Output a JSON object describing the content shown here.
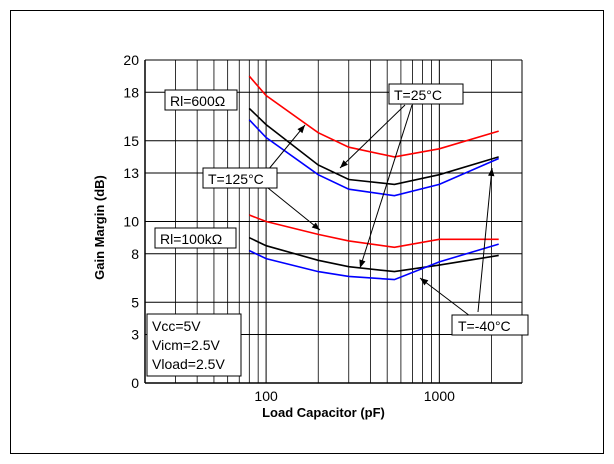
{
  "chart_data": {
    "type": "line",
    "xlabel": "Load Capacitor (pF)",
    "ylabel": "Gain Margin (dB)",
    "x_scale": "log",
    "xlim": [
      20,
      3000
    ],
    "ylim": [
      0,
      20
    ],
    "x_tick_labels": [
      "100",
      "1000"
    ],
    "y_tick_labels": [
      "0",
      "3",
      "5",
      "8",
      "10",
      "13",
      "15",
      "18",
      "20"
    ],
    "grid": true,
    "series": [
      {
        "group": "Rl=600Ω",
        "temp": "T=25°C",
        "color": "#000000",
        "x": [
          80,
          100,
          200,
          300,
          550,
          1000,
          2200
        ],
        "y": [
          17.0,
          16.0,
          13.5,
          12.6,
          12.3,
          12.9,
          14.0
        ]
      },
      {
        "group": "Rl=600Ω",
        "temp": "T=125°C",
        "color": "#ff0000",
        "x": [
          80,
          100,
          200,
          300,
          550,
          1000,
          2200
        ],
        "y": [
          19.0,
          17.8,
          15.5,
          14.6,
          14.0,
          14.5,
          15.6
        ]
      },
      {
        "group": "Rl=600Ω",
        "temp": "T=-40°C",
        "color": "#0000ff",
        "x": [
          80,
          100,
          200,
          300,
          550,
          1000,
          2200
        ],
        "y": [
          16.3,
          15.2,
          12.9,
          12.0,
          11.6,
          12.3,
          13.9
        ]
      },
      {
        "group": "Rl=100kΩ",
        "temp": "T=25°C",
        "color": "#000000",
        "x": [
          80,
          100,
          200,
          300,
          550,
          1000,
          2200
        ],
        "y": [
          9.0,
          8.5,
          7.6,
          7.2,
          6.9,
          7.3,
          7.9
        ]
      },
      {
        "group": "Rl=100kΩ",
        "temp": "T=125°C",
        "color": "#ff0000",
        "x": [
          80,
          100,
          200,
          300,
          550,
          1000,
          2200
        ],
        "y": [
          10.4,
          10.0,
          9.2,
          8.8,
          8.4,
          8.9,
          8.9
        ]
      },
      {
        "group": "Rl=100kΩ",
        "temp": "T=-40°C",
        "color": "#0000ff",
        "x": [
          80,
          100,
          200,
          300,
          550,
          1000,
          2200
        ],
        "y": [
          8.2,
          7.7,
          6.9,
          6.6,
          6.4,
          7.5,
          8.6
        ]
      }
    ],
    "annotations": [
      {
        "name": "rl-600-label",
        "text": "Rl=600Ω"
      },
      {
        "name": "rl-100k-label",
        "text": "Rl=100kΩ"
      },
      {
        "name": "t-25-label",
        "text": "T=25°C"
      },
      {
        "name": "t-125-label",
        "text": "T=125°C"
      },
      {
        "name": "t-minus40-label",
        "text": "T=-40°C"
      },
      {
        "name": "conditions-label",
        "lines": [
          "Vcc=5V",
          "Vicm=2.5V",
          "Vload=2.5V"
        ]
      }
    ]
  }
}
